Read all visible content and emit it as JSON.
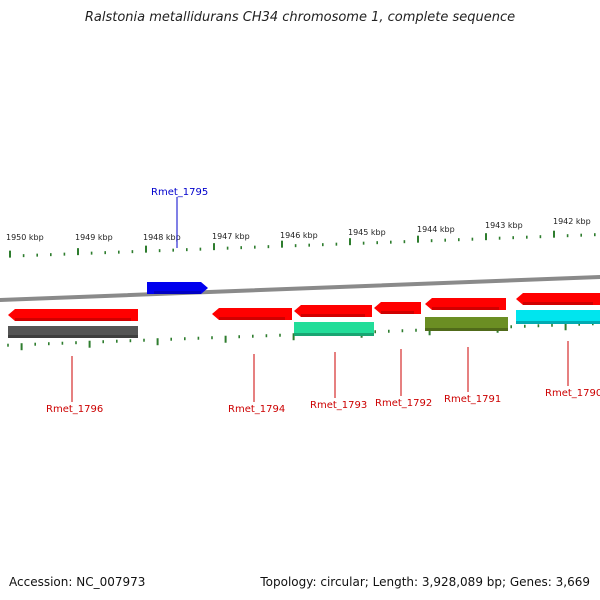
{
  "title": "Ralstonia metallidurans CH34 chromosome 1, complete sequence",
  "footer": {
    "accession": "Accession: NC_007973",
    "summary": "Topology: circular; Length: 3,928,089 bp; Genes: 3,669"
  },
  "colors": {
    "backbone": "#8a8a8a",
    "tick": "#2e7d2e",
    "label_red": "#cc0000",
    "label_blue": "#0000cc"
  },
  "scale_labels": [
    "1950 kbp",
    "1949 kbp",
    "1948 kbp",
    "1947 kbp",
    "1946 kbp",
    "1945 kbp",
    "1944 kbp",
    "1943 kbp",
    "1942 kbp"
  ],
  "genes": [
    {
      "label": "Rmet_1796",
      "strand": "-",
      "color": "#ff0000"
    },
    {
      "label": "Rmet_1795",
      "strand": "+",
      "color": "#0000ee"
    },
    {
      "label": "Rmet_1794",
      "strand": "-",
      "color": "#ff0000"
    },
    {
      "label": "Rmet_1793",
      "strand": "-",
      "color": "#ff0000"
    },
    {
      "label": "Rmet_1792",
      "strand": "-",
      "color": "#ff0000"
    },
    {
      "label": "Rmet_1791",
      "strand": "-",
      "color": "#ff0000"
    },
    {
      "label": "Rmet_1790",
      "strand": "-",
      "color": "#ff0000"
    }
  ],
  "features": [
    {
      "gene": "Rmet_1796",
      "color": "#555555"
    },
    {
      "gene": "Rmet_1793",
      "color": "#22dd99"
    },
    {
      "gene": "Rmet_1791",
      "color": "#6b8e23"
    },
    {
      "gene": "Rmet_1790",
      "color": "#00e5ee"
    }
  ]
}
